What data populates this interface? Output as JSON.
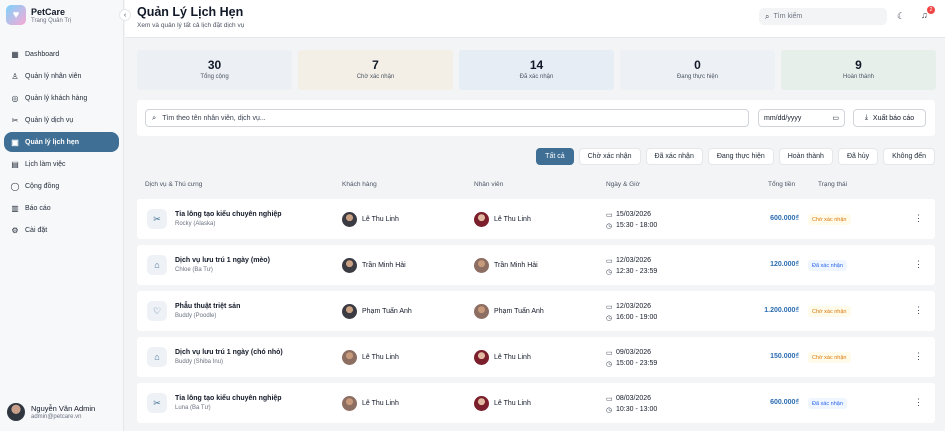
{
  "brand": {
    "name": "PetCare",
    "subtitle": "Trang Quản Trị",
    "collapse_icon": "chevron-left-icon"
  },
  "sidebar": {
    "items": [
      {
        "label": "Dashboard",
        "icon": "grid-icon",
        "glyph": "▦"
      },
      {
        "label": "Quản lý nhân viên",
        "icon": "user-icon",
        "glyph": "♙"
      },
      {
        "label": "Quản lý khách hàng",
        "icon": "user-circle-icon",
        "glyph": "◎"
      },
      {
        "label": "Quản lý dịch vụ",
        "icon": "scissors-icon",
        "glyph": "✂"
      },
      {
        "label": "Quản lý lịch hẹn",
        "icon": "calendar-check-icon",
        "glyph": "▣",
        "active": true
      },
      {
        "label": "Lịch làm việc",
        "icon": "calendar-icon",
        "glyph": "▤"
      },
      {
        "label": "Cộng đồng",
        "icon": "chat-icon",
        "glyph": "◯"
      },
      {
        "label": "Báo cáo",
        "icon": "bar-chart-icon",
        "glyph": "▥"
      },
      {
        "label": "Cài đặt",
        "icon": "gear-icon",
        "glyph": "⚙"
      }
    ],
    "user": {
      "name": "Nguyễn Văn Admin",
      "email": "admin@petcare.vn"
    }
  },
  "header": {
    "title": "Quản Lý Lịch Hẹn",
    "subtitle": "Xem và quản lý tất cả lịch đặt dịch vụ",
    "search_placeholder": "Tìm kiếm",
    "notification_count": "2"
  },
  "stats": [
    {
      "value": "30",
      "label": "Tổng cộng",
      "color": "#eceff3"
    },
    {
      "value": "7",
      "label": "Chờ xác nhận",
      "color": "#f3efe6"
    },
    {
      "value": "14",
      "label": "Đã xác nhận",
      "color": "#e6edf5"
    },
    {
      "value": "0",
      "label": "Đang thực hiện",
      "color": "#edf0f4"
    },
    {
      "value": "9",
      "label": "Hoàn thành",
      "color": "#e6efea"
    }
  ],
  "filters": {
    "search_placeholder": "Tìm theo tên nhân viên, dịch vụ...",
    "date_placeholder": "mm/dd/yyyy",
    "export_label": "Xuất báo cáo"
  },
  "tabs": [
    "Tất cả",
    "Chờ xác nhận",
    "Đã xác nhận",
    "Đang thực hiện",
    "Hoàn thành",
    "Đã hủy",
    "Không đến"
  ],
  "table": {
    "headers": [
      "Dịch vụ & Thú cưng",
      "Khách hàng",
      "Nhân viên",
      "Ngày & Giờ",
      "Tổng tiền",
      "Trạng thái"
    ],
    "rows": [
      {
        "service": "Tỉa lông tạo kiểu chuyên nghiệp",
        "pet": "Rocky (Alaska)",
        "icon": "scissors-icon",
        "glyph": "✂",
        "customer": "Lê Thu Linh",
        "cust_av": "a",
        "staff": "Lê Thu Linh",
        "staff_av": "b",
        "date": "15/03/2026",
        "time": "15:30 - 18:00",
        "price": "600.000₫",
        "status": "Chờ xác nhận",
        "status_type": "pending"
      },
      {
        "service": "Dịch vụ lưu trú 1 ngày (mèo)",
        "pet": "Chloe (Ba Tư)",
        "icon": "home-icon",
        "glyph": "⌂",
        "customer": "Trần Minh Hải",
        "cust_av": "a",
        "staff": "Trần Minh Hải",
        "staff_av": "c",
        "date": "12/03/2026",
        "time": "12:30 - 23:59",
        "price": "120.000₫",
        "status": "Đã xác nhận",
        "status_type": "confirmed"
      },
      {
        "service": "Phẫu thuật triệt sản",
        "pet": "Buddy (Poodle)",
        "icon": "heart-pulse-icon",
        "glyph": "♡",
        "customer": "Phạm Tuấn Anh",
        "cust_av": "a",
        "staff": "Phạm Tuấn Anh",
        "staff_av": "c",
        "date": "12/03/2026",
        "time": "16:00 - 19:00",
        "price": "1.200.000₫",
        "status": "Chờ xác nhận",
        "status_type": "pending"
      },
      {
        "service": "Dịch vụ lưu trú 1 ngày (chó nhỏ)",
        "pet": "Buddy (Shiba Inu)",
        "icon": "home-icon",
        "glyph": "⌂",
        "customer": "Lê Thu Linh",
        "cust_av": "c",
        "staff": "Lê Thu Linh",
        "staff_av": "b",
        "date": "09/03/2026",
        "time": "15:00 - 23:59",
        "price": "150.000₫",
        "status": "Chờ xác nhận",
        "status_type": "pending"
      },
      {
        "service": "Tỉa lông tạo kiểu chuyên nghiệp",
        "pet": "Luna (Ba Tư)",
        "icon": "scissors-icon",
        "glyph": "✂",
        "customer": "Lê Thu Linh",
        "cust_av": "c",
        "staff": "Lê Thu Linh",
        "staff_av": "b",
        "date": "08/03/2026",
        "time": "10:30 - 13:00",
        "price": "600.000₫",
        "status": "Đã xác nhận",
        "status_type": "confirmed"
      }
    ]
  }
}
